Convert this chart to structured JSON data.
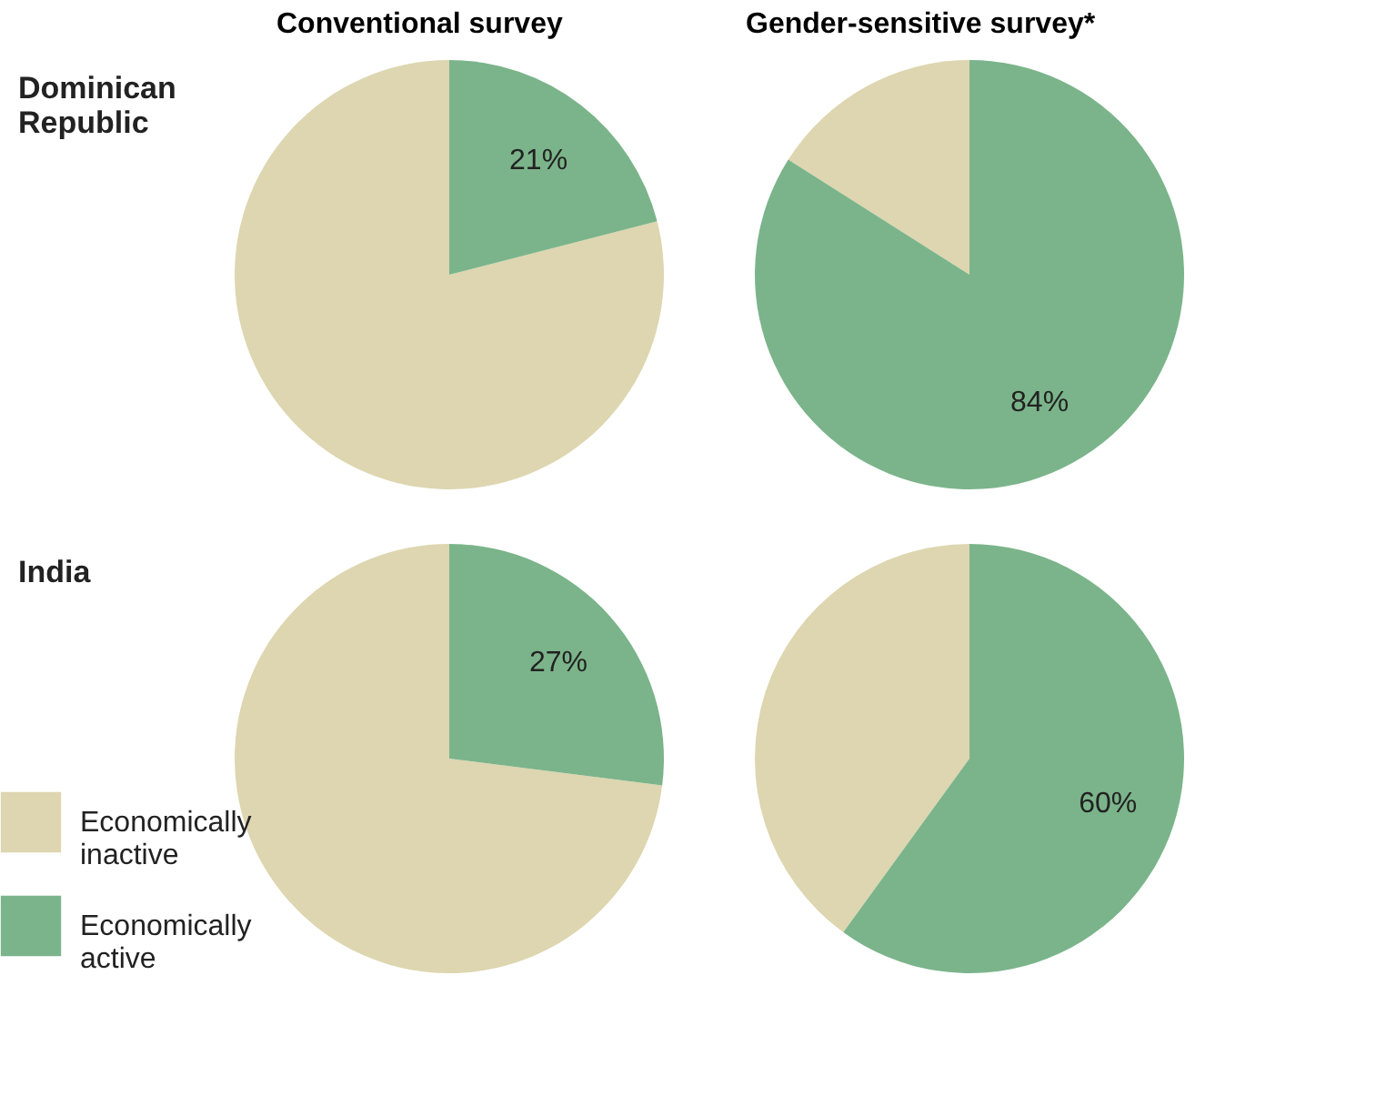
{
  "chart_data": [
    {
      "type": "pie",
      "title": "Conventional survey",
      "ylabel": "Dominican Republic",
      "categories": [
        null,
        null
      ],
      "values": [
        79,
        21
      ],
      "colors": [
        "#ddd6b0",
        "#7bb48a"
      ],
      "value_labels": [
        null,
        "21%"
      ],
      "legend": false
    },
    {
      "type": "pie",
      "title": "Gender-sensitive survey*",
      "categories": [
        null,
        null
      ],
      "values": [
        16,
        84
      ],
      "colors": [
        "#ddd6b0",
        "#7bb48a"
      ],
      "value_labels": [
        null,
        "84%"
      ],
      "legend": false
    },
    {
      "type": "pie",
      "ylabel": "India",
      "categories": [
        "Economically inactive",
        "Economically active"
      ],
      "values": [
        73,
        27
      ],
      "colors": [
        "#ddd6b0",
        "#7bb48a"
      ],
      "value_labels": [
        null,
        "27%"
      ],
      "legend": "bottom left"
    },
    {
      "type": "pie",
      "categories": [
        null,
        null
      ],
      "values": [
        40,
        60
      ],
      "colors": [
        "#ddd6b0",
        "#7bb48a"
      ],
      "value_labels": [
        null,
        "60%"
      ],
      "legend": false
    }
  ]
}
